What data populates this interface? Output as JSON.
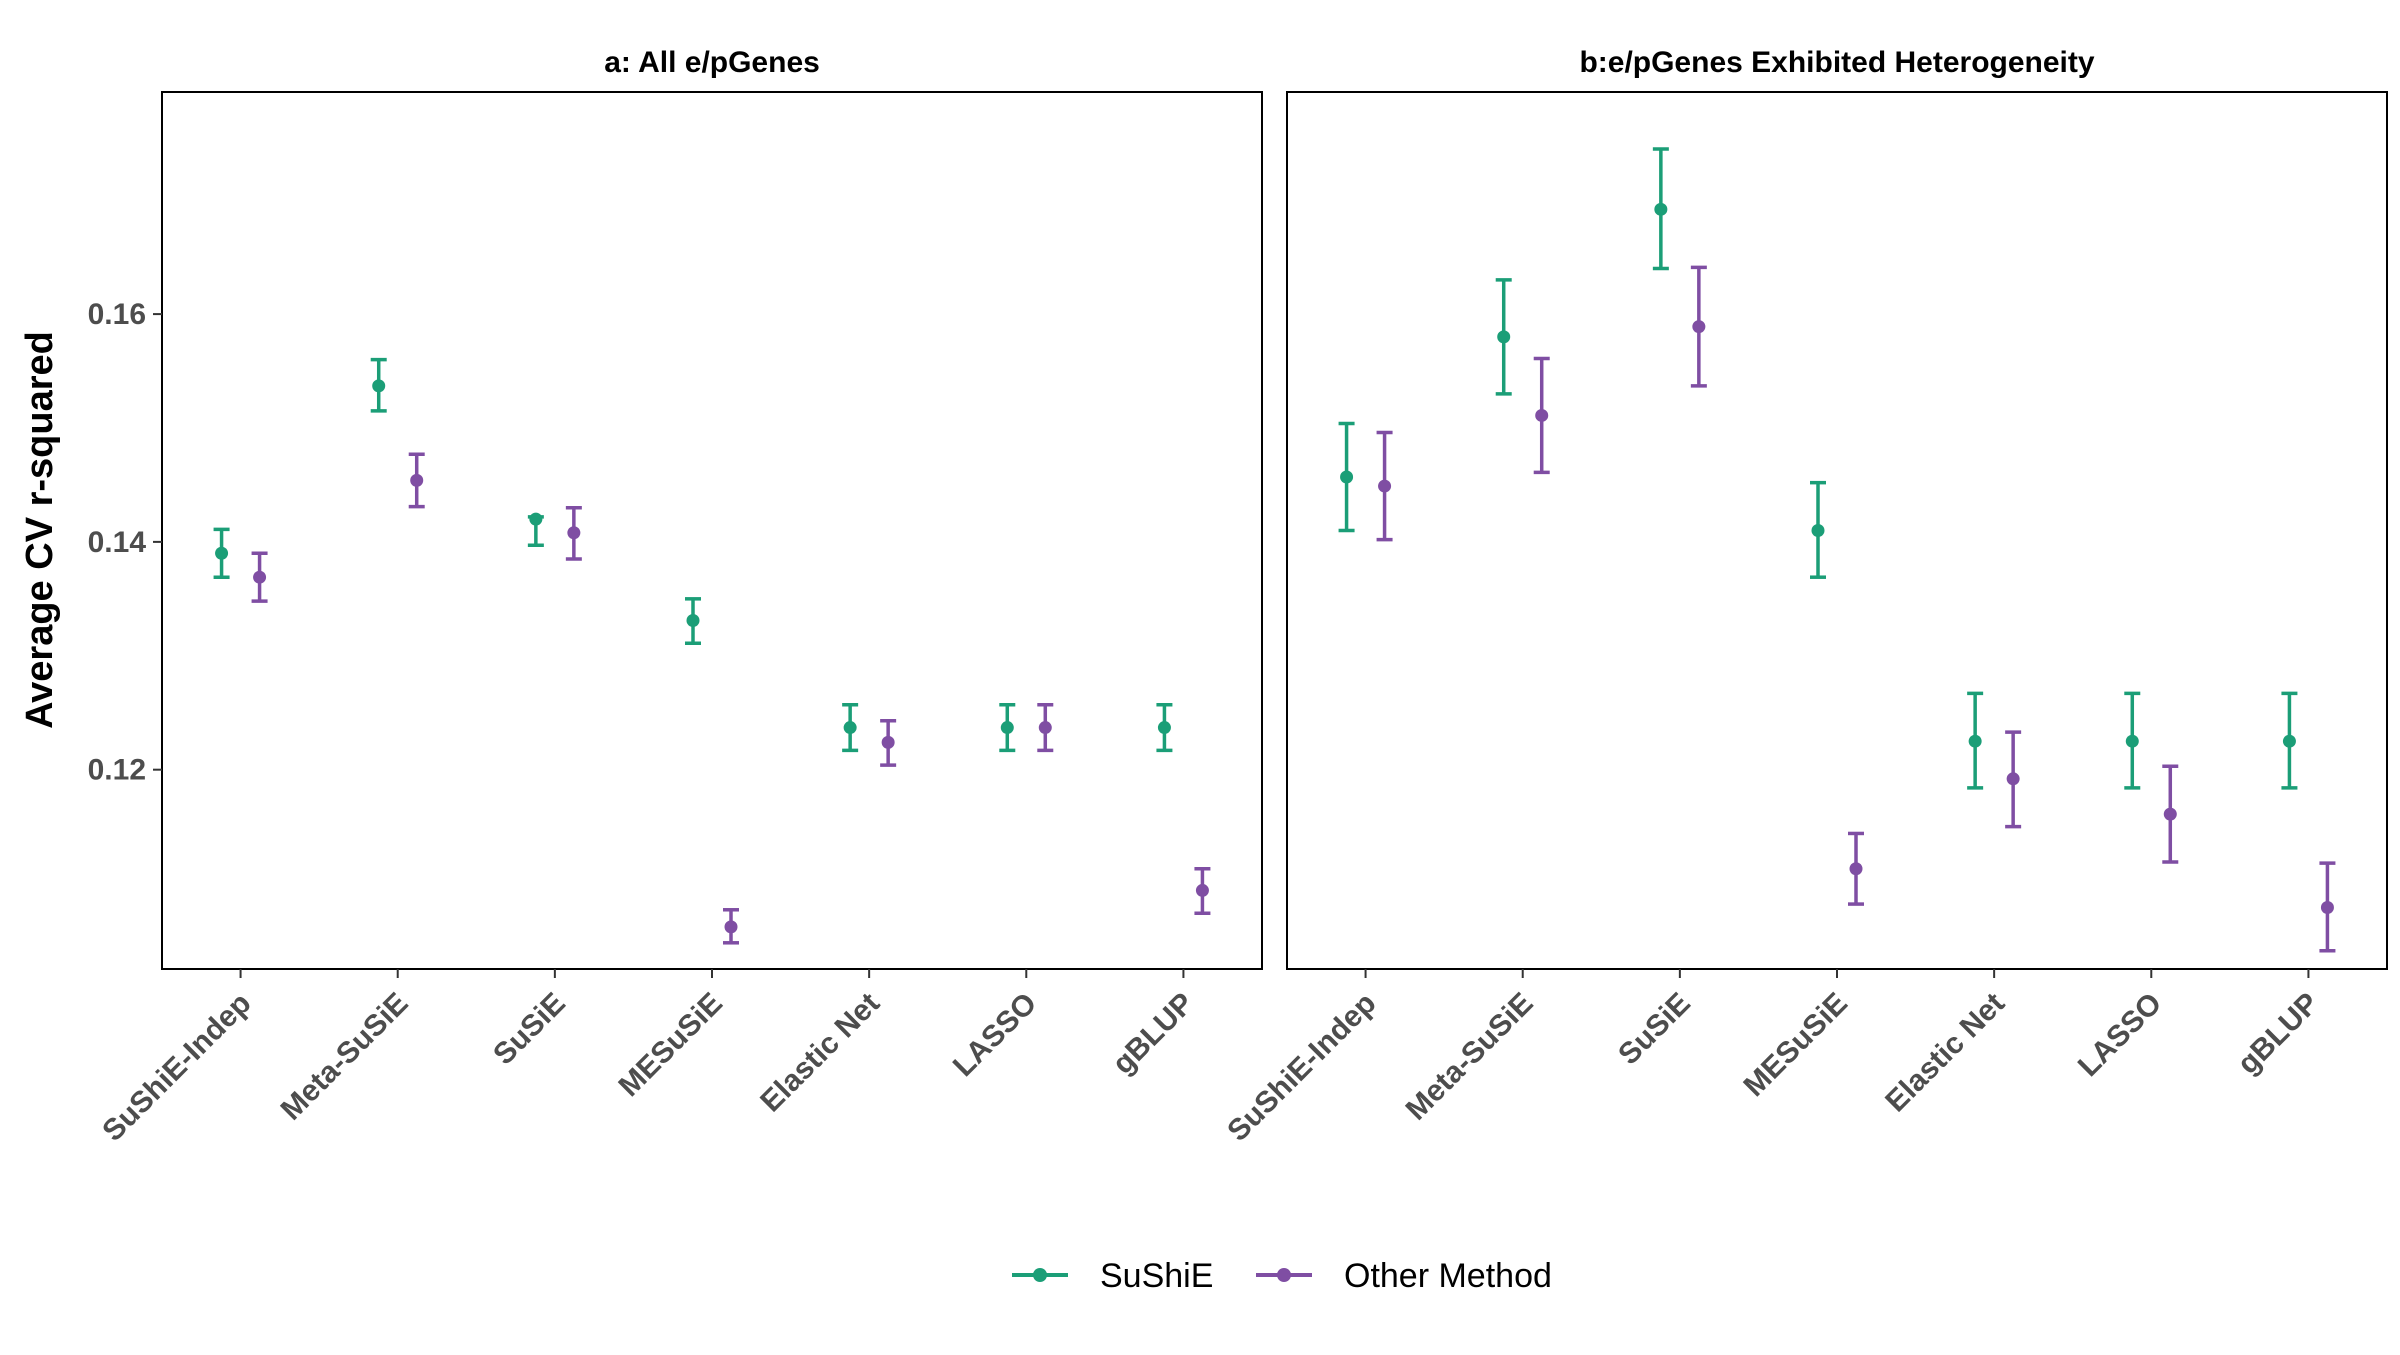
{
  "colors": {
    "sushie": "#1b9e77",
    "other": "#7f4ea3"
  },
  "legend": {
    "items": [
      {
        "label": "SuShiE",
        "series": "sushie"
      },
      {
        "label": "Other Method",
        "series": "other"
      }
    ]
  },
  "chart_data": [
    {
      "type": "errorbar-dot",
      "title": "a: All e/pGenes",
      "ylabel": "Average CV r-squared",
      "xlabel": "",
      "ylim": [
        0.1025,
        0.1795
      ],
      "yticks": [
        0.12,
        0.14,
        0.16
      ],
      "grid": false,
      "legend_placement": "bottom",
      "categories": [
        "SuShiE-Indep",
        "Meta-SuSiE",
        "SuSiE",
        "MESuSiE",
        "Elastic Net",
        "LASSO",
        "gBLUP"
      ],
      "series": [
        {
          "name": "SuShiE",
          "key": "sushie",
          "values": [
            0.139,
            0.1537,
            0.142,
            0.1331,
            0.1237,
            0.1237,
            0.1237
          ],
          "lower": [
            0.1369,
            0.1515,
            0.1397,
            0.1311,
            0.1217,
            0.1217,
            0.1217
          ],
          "upper": [
            0.1411,
            0.156,
            0.1422,
            0.135,
            0.1257,
            0.1257,
            0.1257
          ]
        },
        {
          "name": "Other Method",
          "key": "other",
          "values": [
            0.1369,
            0.1454,
            0.1408,
            0.1062,
            0.1224,
            0.1237,
            0.1094
          ],
          "lower": [
            0.1348,
            0.1431,
            0.1385,
            0.1048,
            0.1204,
            0.1217,
            0.1074
          ],
          "upper": [
            0.139,
            0.1477,
            0.143,
            0.1077,
            0.1243,
            0.1257,
            0.1113
          ]
        }
      ]
    },
    {
      "type": "errorbar-dot",
      "title": "b:e/pGenes Exhibited Heterogeneity",
      "ylabel": "Average CV r-squared",
      "xlabel": "",
      "ylim": [
        0.1025,
        0.1795
      ],
      "yticks": [
        0.12,
        0.14,
        0.16
      ],
      "grid": false,
      "legend_placement": "bottom",
      "categories": [
        "SuShiE-Indep",
        "Meta-SuSiE",
        "SuSiE",
        "MESuSiE",
        "Elastic Net",
        "LASSO",
        "gBLUP"
      ],
      "series": [
        {
          "name": "SuShiE",
          "key": "sushie",
          "values": [
            0.1457,
            0.158,
            0.1692,
            0.141,
            0.1225,
            0.1225,
            0.1225
          ],
          "lower": [
            0.141,
            0.153,
            0.164,
            0.1369,
            0.1184,
            0.1184,
            0.1184
          ],
          "upper": [
            0.1504,
            0.163,
            0.1745,
            0.1452,
            0.1267,
            0.1267,
            0.1267
          ]
        },
        {
          "name": "Other Method",
          "key": "other",
          "values": [
            0.1449,
            0.1511,
            0.1589,
            0.1113,
            0.1192,
            0.1161,
            0.1079
          ],
          "lower": [
            0.1402,
            0.1461,
            0.1537,
            0.1082,
            0.115,
            0.1119,
            0.1041
          ],
          "upper": [
            0.1496,
            0.1561,
            0.1641,
            0.1144,
            0.1233,
            0.1203,
            0.1118
          ]
        }
      ]
    }
  ]
}
